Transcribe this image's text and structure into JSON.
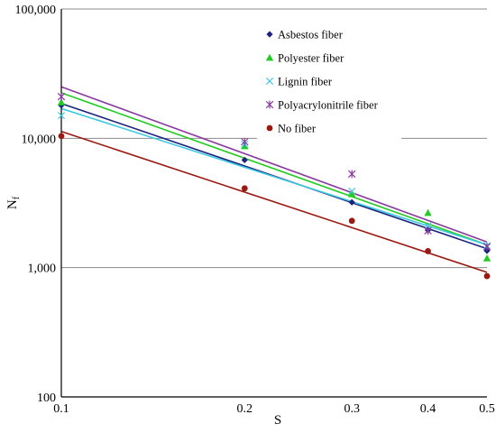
{
  "chart_data": {
    "type": "scatter",
    "title": "",
    "xlabel": "S",
    "ylabel": "N_f",
    "ylabel_main": "N",
    "ylabel_sub": "f",
    "x_scale": "log",
    "y_scale": "log",
    "xlim": [
      0.1,
      0.5
    ],
    "ylim": [
      100,
      100000
    ],
    "x_ticks": [
      0.1,
      0.2,
      0.3,
      0.4,
      0.5
    ],
    "x_tick_labels": [
      "0.1",
      "0.2",
      "0.3",
      "0.4",
      "0.5"
    ],
    "y_ticks": [
      100,
      1000,
      10000,
      100000
    ],
    "y_tick_labels": [
      "100",
      "1,000",
      "10,000",
      "100,000"
    ],
    "grid": "horizontal",
    "legend_position": "top-right",
    "series": [
      {
        "name": "Asbestos fiber",
        "color": "#1a237e",
        "marker": "diamond",
        "x": [
          0.1,
          0.2,
          0.3,
          0.4,
          0.5
        ],
        "y": [
          18000,
          6800,
          3200,
          1950,
          1350
        ],
        "fit": [
          [
            0.1,
            18600
          ],
          [
            0.5,
            1400
          ]
        ]
      },
      {
        "name": "Polyester fiber",
        "color": "#22cc22",
        "marker": "triangle",
        "x": [
          0.1,
          0.2,
          0.3,
          0.4,
          0.5
        ],
        "y": [
          19000,
          8700,
          3700,
          2650,
          1180
        ],
        "fit": [
          [
            0.1,
            22500
          ],
          [
            0.5,
            1500
          ]
        ]
      },
      {
        "name": "Lignin fiber",
        "color": "#3ec8e0",
        "marker": "x",
        "x": [
          0.1,
          0.2,
          0.3,
          0.4,
          0.5
        ],
        "y": [
          15000,
          9000,
          3900,
          2100,
          1480
        ],
        "fit": [
          [
            0.1,
            17000
          ],
          [
            0.5,
            1500
          ]
        ]
      },
      {
        "name": "Polyacrylonitrile fiber",
        "color": "#8a3a9e",
        "marker": "star",
        "x": [
          0.1,
          0.2,
          0.3,
          0.4,
          0.5
        ],
        "y": [
          21000,
          9400,
          5300,
          1930,
          1450
        ],
        "fit": [
          [
            0.1,
            25000
          ],
          [
            0.5,
            1580
          ]
        ]
      },
      {
        "name": "No fiber",
        "color": "#9a1a12",
        "marker": "circle",
        "x": [
          0.1,
          0.2,
          0.3,
          0.4,
          0.5
        ],
        "y": [
          10400,
          4100,
          2300,
          1340,
          860
        ],
        "fit": [
          [
            0.1,
            11300
          ],
          [
            0.5,
            920
          ]
        ]
      }
    ]
  }
}
